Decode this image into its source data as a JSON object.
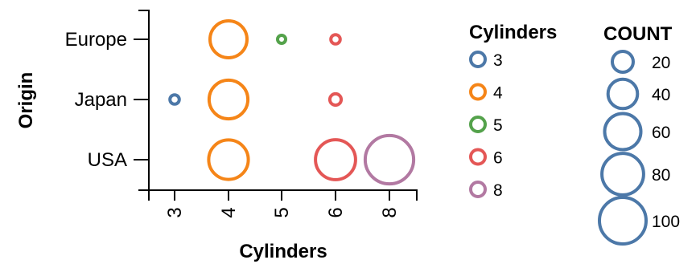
{
  "chart_data": {
    "type": "scatter",
    "encoding": "size",
    "x_title": "Cylinders",
    "y_title": "Origin",
    "x_categories": [
      "3",
      "4",
      "5",
      "6",
      "8"
    ],
    "y_categories": [
      "Europe",
      "Japan",
      "USA"
    ],
    "points": [
      {
        "origin": "Europe",
        "cylinders": "4",
        "count": 63
      },
      {
        "origin": "Europe",
        "cylinders": "5",
        "count": 3
      },
      {
        "origin": "Europe",
        "cylinders": "6",
        "count": 4
      },
      {
        "origin": "Japan",
        "cylinders": "3",
        "count": 4
      },
      {
        "origin": "Japan",
        "cylinders": "4",
        "count": 69
      },
      {
        "origin": "Japan",
        "cylinders": "6",
        "count": 6
      },
      {
        "origin": "USA",
        "cylinders": "4",
        "count": 72
      },
      {
        "origin": "USA",
        "cylinders": "6",
        "count": 74
      },
      {
        "origin": "USA",
        "cylinders": "8",
        "count": 108
      }
    ],
    "color_legend": {
      "title": "Cylinders",
      "entries": [
        {
          "label": "3",
          "color": "#4c78a8"
        },
        {
          "label": "4",
          "color": "#f58518"
        },
        {
          "label": "5",
          "color": "#54a24b"
        },
        {
          "label": "6",
          "color": "#e45756"
        },
        {
          "label": "8",
          "color": "#b279a2"
        }
      ]
    },
    "size_legend": {
      "title": "COUNT",
      "color": "#4c78a8",
      "entries": [
        {
          "label": "20",
          "value": 20
        },
        {
          "label": "40",
          "value": 40
        },
        {
          "label": "60",
          "value": 60
        },
        {
          "label": "80",
          "value": 80
        },
        {
          "label": "100",
          "value": 100
        }
      ]
    },
    "legend_position": "right",
    "grid": false
  }
}
